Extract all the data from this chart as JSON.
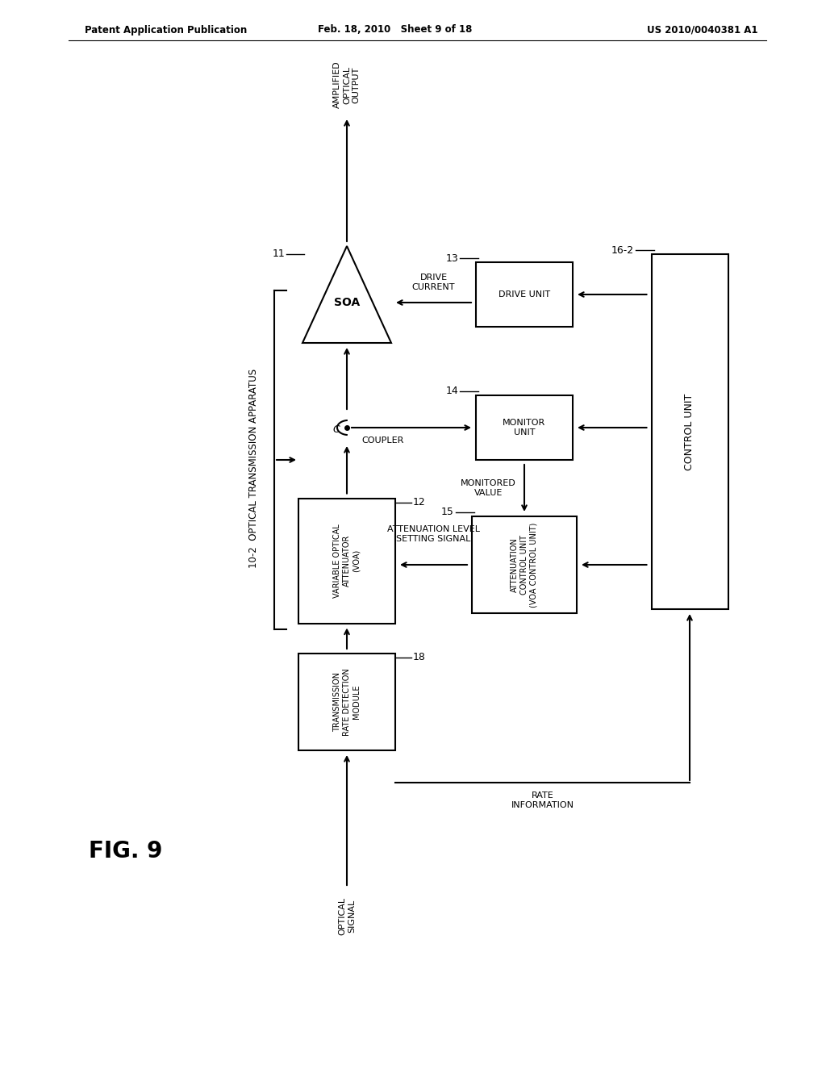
{
  "bg_color": "#ffffff",
  "header_left": "Patent Application Publication",
  "header_mid": "Feb. 18, 2010   Sheet 9 of 18",
  "header_right": "US 2010/0040381 A1",
  "fig_label": "FIG. 9",
  "system_label": "10-2  OPTICAL TRANSMISSION APPARATUS",
  "title_output": "AMPLIFIED\nOPTICAL\nOUTPUT",
  "soa_label": "SOA",
  "soa_num": "11",
  "coupler_c": "C",
  "coupler_word": "COUPLER",
  "voa_label": "VARIABLE OPTICAL\nATTENUATOR\n(VOA)",
  "voa_num": "12",
  "trd_label": "TRANSMISSION\nRATE DETECTION\nMODULE",
  "trd_num": "18",
  "drive_label": "DRIVE UNIT",
  "drive_num": "13",
  "monitor_label": "MONITOR\nUNIT",
  "monitor_num": "14",
  "atten_label": "ATTENUATION\nCONTROL UNIT\n(VOA CONTROL UNIT)",
  "atten_num": "15",
  "control_label": "CONTROL UNIT",
  "control_num": "16-2",
  "signal_label": "OPTICAL\nSIGNAL",
  "drive_current_label": "DRIVE\nCURRENT",
  "monitored_value_label": "MONITORED\nVALUE",
  "atten_level_label": "ATTENUATION LEVEL\nSETTING SIGNAL",
  "rate_info_label": "RATE\nINFORMATION"
}
